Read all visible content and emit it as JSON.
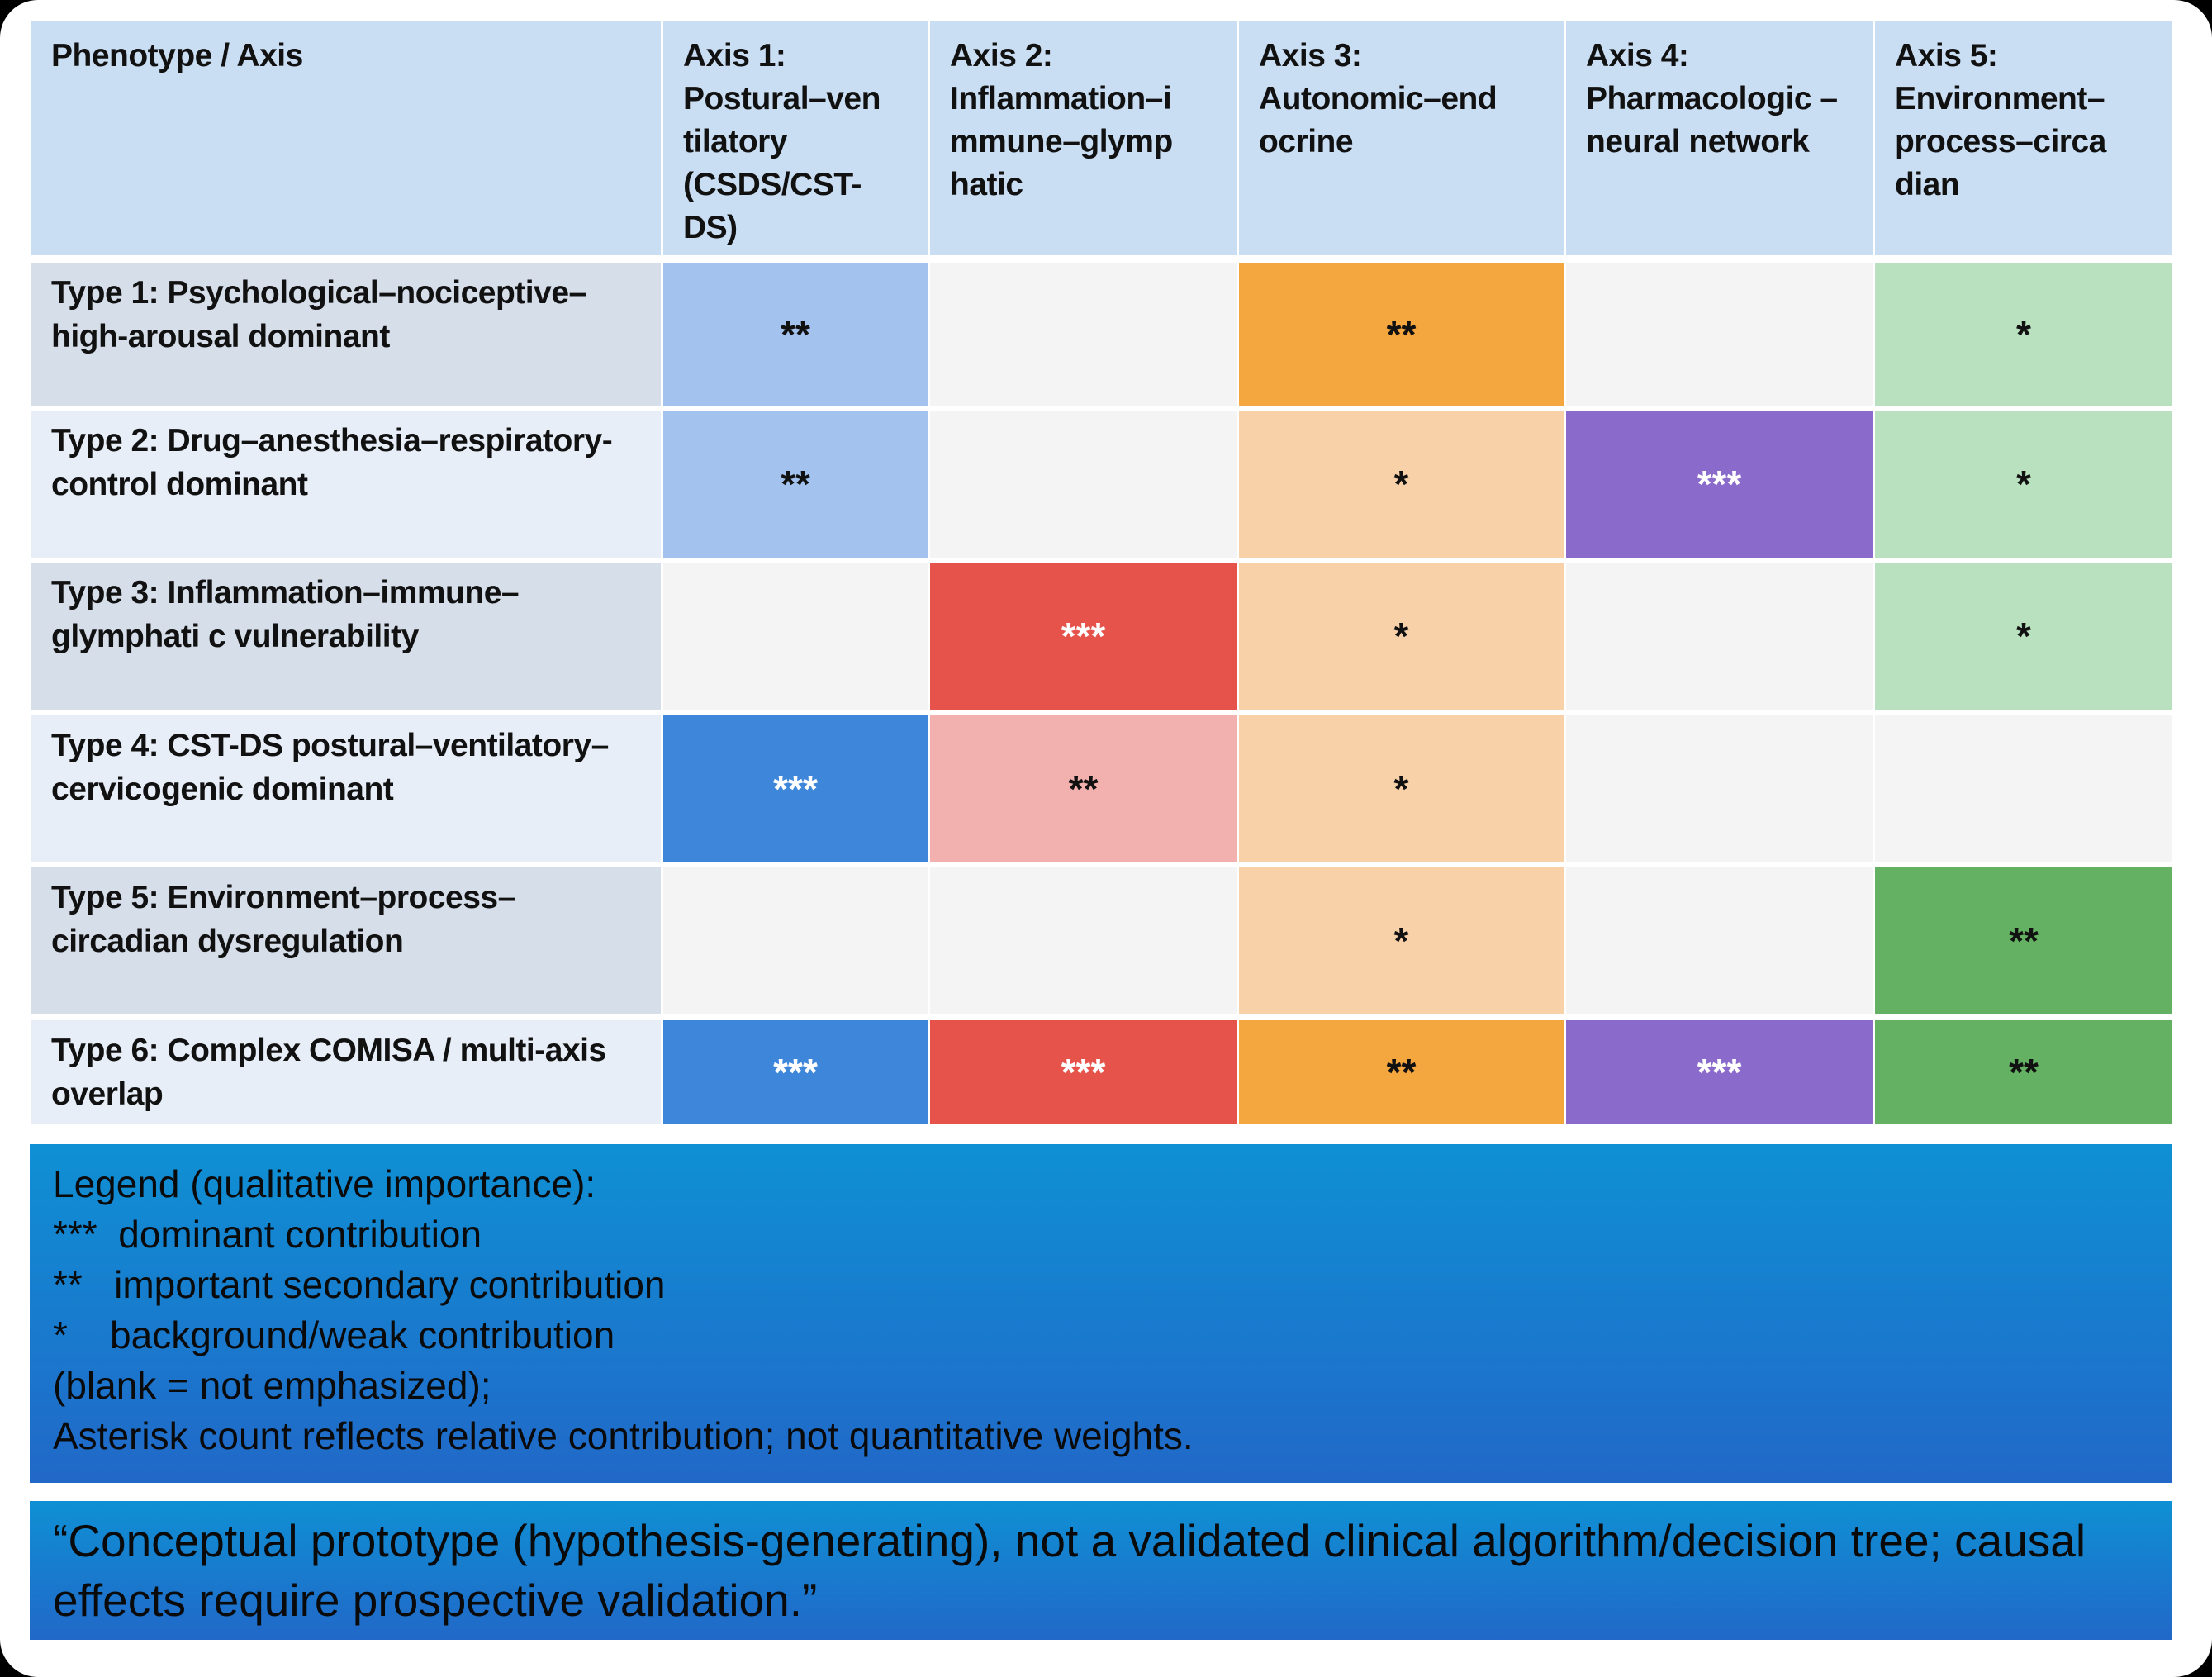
{
  "table": {
    "corner_header": "Phenotype / Axis",
    "axes": [
      "Axis 1: Postural–ven tilatory (CSDS/CST-DS)",
      "Axis 2: Inflammation–i mmune–glymp hatic",
      "Axis 3: Autonomic–end ocrine",
      "Axis 4: Pharmacologic –neural network",
      "Axis 5: Environment–process–circa dian"
    ],
    "rows": [
      {
        "label": "Type 1: Psychological–nociceptive–high-arousal dominant",
        "values": [
          "**",
          "",
          "**",
          "",
          "*"
        ]
      },
      {
        "label": "Type 2: Drug–anesthesia–respiratory-control dominant",
        "values": [
          "**",
          "",
          "*",
          "***",
          "*"
        ]
      },
      {
        "label": "Type 3: Inflammation–immune–glymphati c vulnerability",
        "values": [
          "",
          "***",
          "*",
          "",
          "*"
        ]
      },
      {
        "label": "Type 4: CST-DS postural–ventilatory–cervicogenic dominant",
        "values": [
          "***",
          "**",
          "*",
          "",
          ""
        ]
      },
      {
        "label": "Type 5: Environment–process–circadian dysregulation",
        "values": [
          "",
          "",
          "*",
          "",
          "**"
        ]
      },
      {
        "label": "Type 6: Complex COMISA / multi-axis overlap",
        "values": [
          "***",
          "***",
          "**",
          "***",
          "**"
        ]
      }
    ]
  },
  "colors": {
    "header": "#c9ddf3",
    "empty": "#f4f4f5",
    "axes": [
      {
        "1": "#a3c3ee",
        "2": "#a3c3ee",
        "3": "#3d86d9"
      },
      {
        "1": "#f2b1ae",
        "2": "#f2b1ae",
        "3": "#e5534b"
      },
      {
        "1": "#f9d1a8",
        "2": "#f4a63f",
        "3": "#f4a63f"
      },
      {
        "1": "#8a6bcc",
        "2": "#8a6bcc",
        "3": "#8a6bcc"
      },
      {
        "1": "#b9e0bf",
        "2": "#65b163",
        "3": "#65b163"
      }
    ]
  },
  "legend": {
    "title": "Legend (qualitative importance):",
    "items": [
      "***  dominant contribution",
      "**   important secondary contribution",
      "*    background/weak contribution"
    ],
    "blank_note": "(blank = not emphasized);",
    "footnote": "Asterisk count reflects relative contribution; not quantitative weights."
  },
  "disclaimer": "“Conceptual prototype (hypothesis-generating), not a validated clinical algorithm/decision tree; causal effects require prospective validation.”"
}
